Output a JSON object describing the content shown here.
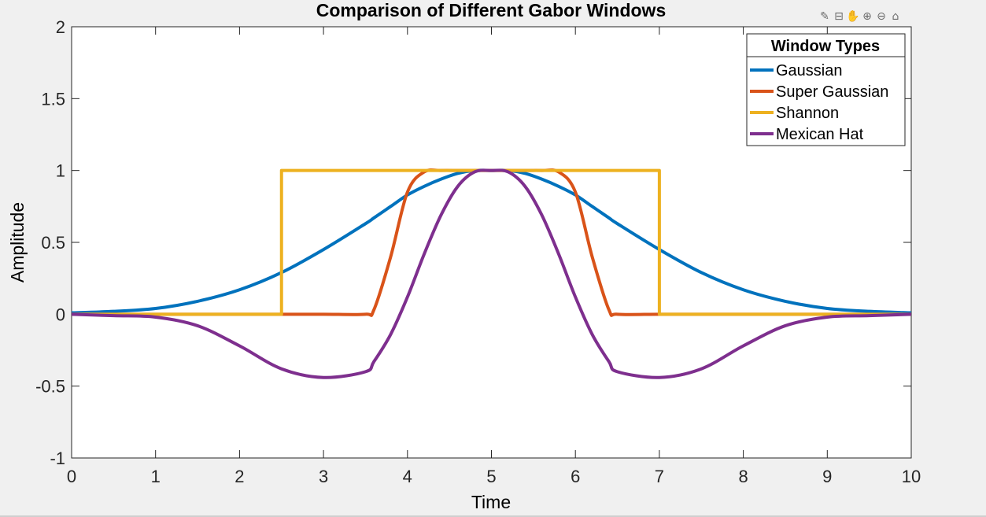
{
  "toolbar": {
    "icons": [
      "brush-icon",
      "data-tip-icon",
      "pan-icon",
      "zoom-in-icon",
      "zoom-out-icon",
      "home-icon"
    ]
  },
  "chart_data": {
    "type": "line",
    "title": "Comparison of Different Gabor Windows",
    "xlabel": "Time",
    "ylabel": "Amplitude",
    "xlim": [
      0,
      10
    ],
    "ylim": [
      -1,
      2
    ],
    "xticks": [
      "0",
      "1",
      "2",
      "3",
      "4",
      "5",
      "6",
      "7",
      "8",
      "9",
      "10"
    ],
    "yticks": [
      "-1",
      "-0.5",
      "0",
      "0.5",
      "1",
      "1.5",
      "2"
    ],
    "grid": false,
    "legend": {
      "title": "Window Types",
      "position": "top-right"
    },
    "x": [
      0,
      0.5,
      1,
      1.5,
      2,
      2.5,
      3,
      3.5,
      3.6,
      3.8,
      4,
      4.2,
      4.4,
      4.6,
      4.8,
      5,
      5.2,
      5.4,
      5.6,
      5.8,
      6,
      6.2,
      6.4,
      6.5,
      7,
      7.5,
      8,
      8.5,
      9,
      9.5,
      10
    ],
    "series": [
      {
        "name": "Gaussian",
        "color": "#0072BD",
        "values": [
          0.01,
          0.02,
          0.04,
          0.09,
          0.17,
          0.29,
          0.45,
          0.63,
          0.67,
          0.75,
          0.83,
          0.89,
          0.94,
          0.98,
          1.0,
          1.0,
          1.0,
          0.98,
          0.94,
          0.89,
          0.83,
          0.75,
          0.67,
          0.63,
          0.45,
          0.29,
          0.17,
          0.09,
          0.04,
          0.02,
          0.01
        ]
      },
      {
        "name": "Super Gaussian",
        "color": "#D95319",
        "values": [
          0,
          0,
          0,
          0,
          0,
          0,
          0,
          0,
          0.03,
          0.4,
          0.85,
          0.99,
          1.0,
          1.0,
          1.0,
          1.0,
          1.0,
          1.0,
          1.0,
          0.99,
          0.85,
          0.4,
          0.03,
          0,
          0,
          0,
          0,
          0,
          0,
          0,
          0
        ]
      },
      {
        "name": "Shannon",
        "color": "#EDB120",
        "values": [
          0,
          0,
          0,
          0,
          0,
          0,
          1,
          1,
          1,
          1,
          1,
          1,
          1,
          1,
          1,
          1,
          1,
          1,
          1,
          1,
          1,
          1,
          1,
          1,
          1,
          0,
          0,
          0,
          0,
          0,
          0
        ]
      },
      {
        "name": "Mexican Hat",
        "color": "#7E2F8E",
        "values": [
          0,
          -0.01,
          -0.02,
          -0.08,
          -0.22,
          -0.38,
          -0.44,
          -0.4,
          -0.33,
          -0.14,
          0.12,
          0.42,
          0.69,
          0.89,
          0.99,
          1.0,
          0.99,
          0.89,
          0.69,
          0.42,
          0.12,
          -0.14,
          -0.33,
          -0.4,
          -0.44,
          -0.38,
          -0.22,
          -0.08,
          -0.02,
          -0.01,
          0
        ]
      }
    ]
  }
}
